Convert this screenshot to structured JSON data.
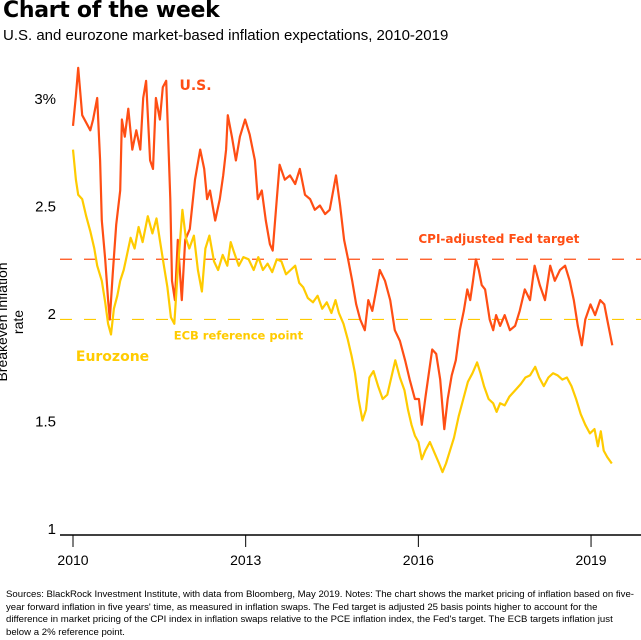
{
  "header": {
    "title": "Chart of the week",
    "subtitle": "U.S. and eurozone market-based inflation expectations, 2010-2019"
  },
  "footer": {
    "text": "Sources: BlackRock Investment Institute, with data from Bloomberg, May 2019. Notes: The chart shows the market pricing of inflation based on five-year forward inflation in five years' time, as measured in inflation swaps. The Fed target is adjusted 25 basis points higher to account for the difference in market pricing of the CPI index in inflation swaps relative to the PCE inflation index, the Fed's target. The ECB targets inflation just below a 2% reference point."
  },
  "colors": {
    "us": "#ff4e14",
    "eurozone": "#ffcb00",
    "axis": "#000000"
  },
  "chart_data": {
    "type": "line",
    "title": "Chart of the week",
    "subtitle": "U.S. and eurozone market-based inflation expectations, 2010-2019",
    "xlabel": "",
    "ylabel": "Breakeven inflation rate",
    "xlim": [
      2009.85,
      2019.85
    ],
    "ylim": [
      1,
      3.3
    ],
    "x_ticks": [
      2010,
      2013,
      2016,
      2019
    ],
    "x_tick_labels": [
      "2010",
      "2013",
      "2016",
      "2019"
    ],
    "y_ticks": [
      1,
      1.5,
      2,
      2.5,
      3
    ],
    "y_tick_labels": [
      "1",
      "1.5",
      "2",
      "2.5",
      "3%"
    ],
    "grid": false,
    "legend": "inline labels",
    "reference_lines": [
      {
        "name": "CPI-adjusted Fed target",
        "value": 2.25,
        "color": "#ff4e14",
        "style": "dashed"
      },
      {
        "name": "ECB reference point",
        "value": 1.97,
        "color": "#ffcb00",
        "style": "dashed"
      }
    ],
    "annotations": [
      {
        "text": "U.S.",
        "x": 2011.85,
        "y": 3.06,
        "series": "U.S."
      },
      {
        "text": "Eurozone",
        "x": 2010.05,
        "y": 1.8,
        "series": "Eurozone"
      },
      {
        "text": "CPI-adjusted Fed target",
        "x": 2016.0,
        "y": 2.35,
        "series": "U.S."
      },
      {
        "text": "ECB reference point",
        "x": 2011.75,
        "y": 1.9,
        "series": "Eurozone"
      }
    ],
    "series": [
      {
        "name": "U.S.",
        "color": "#ff4e14",
        "points": [
          [
            2010.0,
            2.87
          ],
          [
            2010.05,
            3.01
          ],
          [
            2010.09,
            3.14
          ],
          [
            2010.16,
            2.92
          ],
          [
            2010.3,
            2.85
          ],
          [
            2010.35,
            2.9
          ],
          [
            2010.42,
            3.0
          ],
          [
            2010.47,
            2.71
          ],
          [
            2010.5,
            2.43
          ],
          [
            2010.56,
            2.25
          ],
          [
            2010.61,
            2.06
          ],
          [
            2010.64,
            1.97
          ],
          [
            2010.69,
            2.18
          ],
          [
            2010.75,
            2.41
          ],
          [
            2010.82,
            2.57
          ],
          [
            2010.85,
            2.9
          ],
          [
            2010.9,
            2.82
          ],
          [
            2010.96,
            2.95
          ],
          [
            2011.03,
            2.76
          ],
          [
            2011.1,
            2.85
          ],
          [
            2011.17,
            2.76
          ],
          [
            2011.22,
            3.0
          ],
          [
            2011.27,
            3.08
          ],
          [
            2011.34,
            2.71
          ],
          [
            2011.39,
            2.67
          ],
          [
            2011.44,
            3.0
          ],
          [
            2011.51,
            2.9
          ],
          [
            2011.56,
            3.05
          ],
          [
            2011.62,
            3.08
          ],
          [
            2011.69,
            2.53
          ],
          [
            2011.72,
            2.15
          ],
          [
            2011.77,
            2.06
          ],
          [
            2011.82,
            2.34
          ],
          [
            2011.89,
            2.06
          ],
          [
            2011.95,
            2.34
          ],
          [
            2012.03,
            2.39
          ],
          [
            2012.12,
            2.62
          ],
          [
            2012.21,
            2.76
          ],
          [
            2012.28,
            2.67
          ],
          [
            2012.33,
            2.53
          ],
          [
            2012.38,
            2.57
          ],
          [
            2012.47,
            2.43
          ],
          [
            2012.55,
            2.53
          ],
          [
            2012.61,
            2.64
          ],
          [
            2012.66,
            2.76
          ],
          [
            2012.69,
            2.92
          ],
          [
            2012.76,
            2.82
          ],
          [
            2012.83,
            2.71
          ],
          [
            2012.9,
            2.82
          ],
          [
            2012.99,
            2.9
          ],
          [
            2013.07,
            2.83
          ],
          [
            2013.16,
            2.71
          ],
          [
            2013.21,
            2.53
          ],
          [
            2013.28,
            2.57
          ],
          [
            2013.35,
            2.43
          ],
          [
            2013.42,
            2.32
          ],
          [
            2013.47,
            2.29
          ],
          [
            2013.54,
            2.53
          ],
          [
            2013.59,
            2.69
          ],
          [
            2013.68,
            2.62
          ],
          [
            2013.77,
            2.64
          ],
          [
            2013.86,
            2.6
          ],
          [
            2013.94,
            2.67
          ],
          [
            2014.03,
            2.55
          ],
          [
            2014.12,
            2.53
          ],
          [
            2014.2,
            2.48
          ],
          [
            2014.29,
            2.5
          ],
          [
            2014.38,
            2.46
          ],
          [
            2014.46,
            2.48
          ],
          [
            2014.57,
            2.64
          ],
          [
            2014.64,
            2.5
          ],
          [
            2014.71,
            2.34
          ],
          [
            2014.78,
            2.25
          ],
          [
            2014.85,
            2.15
          ],
          [
            2014.92,
            2.04
          ],
          [
            2014.99,
            1.97
          ],
          [
            2015.07,
            1.92
          ],
          [
            2015.13,
            2.06
          ],
          [
            2015.2,
            2.01
          ],
          [
            2015.27,
            2.11
          ],
          [
            2015.33,
            2.2
          ],
          [
            2015.42,
            2.15
          ],
          [
            2015.51,
            2.06
          ],
          [
            2015.59,
            1.92
          ],
          [
            2015.68,
            1.87
          ],
          [
            2015.77,
            1.78
          ],
          [
            2015.85,
            1.69
          ],
          [
            2015.94,
            1.6
          ],
          [
            2016.01,
            1.6
          ],
          [
            2016.06,
            1.48
          ],
          [
            2016.13,
            1.62
          ],
          [
            2016.24,
            1.83
          ],
          [
            2016.31,
            1.81
          ],
          [
            2016.38,
            1.69
          ],
          [
            2016.45,
            1.46
          ],
          [
            2016.51,
            1.6
          ],
          [
            2016.58,
            1.71
          ],
          [
            2016.65,
            1.78
          ],
          [
            2016.72,
            1.92
          ],
          [
            2016.79,
            2.01
          ],
          [
            2016.85,
            2.11
          ],
          [
            2016.9,
            2.06
          ],
          [
            2016.95,
            2.15
          ],
          [
            2017.0,
            2.25
          ],
          [
            2017.05,
            2.2
          ],
          [
            2017.1,
            2.13
          ],
          [
            2017.16,
            2.11
          ],
          [
            2017.24,
            1.97
          ],
          [
            2017.3,
            1.92
          ],
          [
            2017.35,
            1.99
          ],
          [
            2017.42,
            1.94
          ],
          [
            2017.5,
            1.99
          ],
          [
            2017.59,
            1.92
          ],
          [
            2017.68,
            1.94
          ],
          [
            2017.76,
            2.01
          ],
          [
            2017.85,
            2.11
          ],
          [
            2017.94,
            2.06
          ],
          [
            2018.02,
            2.22
          ],
          [
            2018.11,
            2.13
          ],
          [
            2018.2,
            2.06
          ],
          [
            2018.29,
            2.22
          ],
          [
            2018.37,
            2.15
          ],
          [
            2018.46,
            2.2
          ],
          [
            2018.55,
            2.22
          ],
          [
            2018.63,
            2.15
          ],
          [
            2018.7,
            2.06
          ],
          [
            2018.77,
            1.94
          ],
          [
            2018.84,
            1.85
          ],
          [
            2018.9,
            1.97
          ],
          [
            2018.99,
            2.04
          ],
          [
            2019.07,
            1.99
          ],
          [
            2019.16,
            2.06
          ],
          [
            2019.23,
            2.04
          ],
          [
            2019.28,
            1.97
          ],
          [
            2019.37,
            1.85
          ]
        ]
      },
      {
        "name": "Eurozone",
        "color": "#ffcb00",
        "points": [
          [
            2010.0,
            2.76
          ],
          [
            2010.05,
            2.62
          ],
          [
            2010.09,
            2.55
          ],
          [
            2010.16,
            2.53
          ],
          [
            2010.23,
            2.45
          ],
          [
            2010.3,
            2.38
          ],
          [
            2010.37,
            2.3
          ],
          [
            2010.42,
            2.22
          ],
          [
            2010.5,
            2.15
          ],
          [
            2010.56,
            2.05
          ],
          [
            2010.61,
            1.95
          ],
          [
            2010.66,
            1.9
          ],
          [
            2010.71,
            2.02
          ],
          [
            2010.77,
            2.08
          ],
          [
            2010.82,
            2.15
          ],
          [
            2010.88,
            2.2
          ],
          [
            2010.93,
            2.26
          ],
          [
            2011.0,
            2.35
          ],
          [
            2011.07,
            2.3
          ],
          [
            2011.14,
            2.4
          ],
          [
            2011.21,
            2.33
          ],
          [
            2011.3,
            2.45
          ],
          [
            2011.38,
            2.37
          ],
          [
            2011.45,
            2.44
          ],
          [
            2011.52,
            2.32
          ],
          [
            2011.58,
            2.22
          ],
          [
            2011.64,
            2.12
          ],
          [
            2011.7,
            1.98
          ],
          [
            2011.76,
            1.95
          ],
          [
            2011.82,
            2.2
          ],
          [
            2011.9,
            2.48
          ],
          [
            2011.96,
            2.35
          ],
          [
            2012.02,
            2.3
          ],
          [
            2012.1,
            2.36
          ],
          [
            2012.17,
            2.2
          ],
          [
            2012.24,
            2.1
          ],
          [
            2012.3,
            2.3
          ],
          [
            2012.37,
            2.36
          ],
          [
            2012.45,
            2.24
          ],
          [
            2012.52,
            2.2
          ],
          [
            2012.6,
            2.27
          ],
          [
            2012.68,
            2.22
          ],
          [
            2012.74,
            2.33
          ],
          [
            2012.8,
            2.28
          ],
          [
            2012.88,
            2.22
          ],
          [
            2012.96,
            2.26
          ],
          [
            2013.05,
            2.25
          ],
          [
            2013.14,
            2.2
          ],
          [
            2013.22,
            2.26
          ],
          [
            2013.3,
            2.2
          ],
          [
            2013.38,
            2.23
          ],
          [
            2013.46,
            2.19
          ],
          [
            2013.54,
            2.25
          ],
          [
            2013.62,
            2.24
          ],
          [
            2013.7,
            2.18
          ],
          [
            2013.78,
            2.2
          ],
          [
            2013.86,
            2.22
          ],
          [
            2013.93,
            2.14
          ],
          [
            2014.0,
            2.12
          ],
          [
            2014.08,
            2.07
          ],
          [
            2014.17,
            2.05
          ],
          [
            2014.25,
            2.08
          ],
          [
            2014.33,
            2.02
          ],
          [
            2014.41,
            2.05
          ],
          [
            2014.49,
            2.0
          ],
          [
            2014.56,
            2.06
          ],
          [
            2014.62,
            2.0
          ],
          [
            2014.7,
            1.95
          ],
          [
            2014.77,
            1.88
          ],
          [
            2014.84,
            1.8
          ],
          [
            2014.9,
            1.72
          ],
          [
            2014.96,
            1.6
          ],
          [
            2015.03,
            1.5
          ],
          [
            2015.09,
            1.55
          ],
          [
            2015.15,
            1.7
          ],
          [
            2015.22,
            1.73
          ],
          [
            2015.3,
            1.66
          ],
          [
            2015.38,
            1.6
          ],
          [
            2015.46,
            1.62
          ],
          [
            2015.53,
            1.7
          ],
          [
            2015.6,
            1.78
          ],
          [
            2015.68,
            1.7
          ],
          [
            2015.76,
            1.64
          ],
          [
            2015.82,
            1.55
          ],
          [
            2015.88,
            1.48
          ],
          [
            2015.94,
            1.43
          ],
          [
            2016.0,
            1.4
          ],
          [
            2016.06,
            1.32
          ],
          [
            2016.12,
            1.36
          ],
          [
            2016.2,
            1.4
          ],
          [
            2016.28,
            1.35
          ],
          [
            2016.36,
            1.3
          ],
          [
            2016.42,
            1.26
          ],
          [
            2016.48,
            1.3
          ],
          [
            2016.55,
            1.36
          ],
          [
            2016.62,
            1.42
          ],
          [
            2016.7,
            1.52
          ],
          [
            2016.78,
            1.6
          ],
          [
            2016.86,
            1.68
          ],
          [
            2016.94,
            1.72
          ],
          [
            2017.02,
            1.77
          ],
          [
            2017.08,
            1.72
          ],
          [
            2017.14,
            1.66
          ],
          [
            2017.22,
            1.6
          ],
          [
            2017.3,
            1.58
          ],
          [
            2017.36,
            1.54
          ],
          [
            2017.42,
            1.58
          ],
          [
            2017.5,
            1.57
          ],
          [
            2017.58,
            1.61
          ],
          [
            2017.68,
            1.64
          ],
          [
            2017.78,
            1.67
          ],
          [
            2017.86,
            1.7
          ],
          [
            2017.94,
            1.71
          ],
          [
            2018.03,
            1.75
          ],
          [
            2018.1,
            1.7
          ],
          [
            2018.18,
            1.66
          ],
          [
            2018.26,
            1.7
          ],
          [
            2018.34,
            1.72
          ],
          [
            2018.42,
            1.71
          ],
          [
            2018.5,
            1.69
          ],
          [
            2018.58,
            1.7
          ],
          [
            2018.66,
            1.66
          ],
          [
            2018.74,
            1.6
          ],
          [
            2018.82,
            1.53
          ],
          [
            2018.9,
            1.48
          ],
          [
            2018.98,
            1.44
          ],
          [
            2019.06,
            1.46
          ],
          [
            2019.12,
            1.38
          ],
          [
            2019.17,
            1.45
          ],
          [
            2019.22,
            1.36
          ],
          [
            2019.28,
            1.33
          ],
          [
            2019.36,
            1.3
          ]
        ]
      }
    ]
  }
}
